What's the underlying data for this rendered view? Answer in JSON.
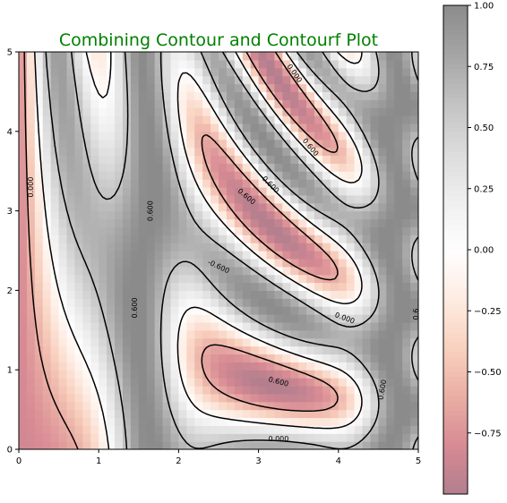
{
  "chart_data": {
    "type": "heatmap",
    "title": "Combining Contour and Contourf Plot",
    "title_color": "#008000",
    "xlim": [
      0,
      5
    ],
    "ylim": [
      0,
      5
    ],
    "x_ticks": [
      "0",
      "1",
      "2",
      "3",
      "4",
      "5"
    ],
    "y_ticks": [
      "0",
      "1",
      "2",
      "3",
      "4",
      "5"
    ],
    "grid": false,
    "grid_resolution": 50,
    "field": "sin(x)^10 + cos(10 + y*x) * cos(x)",
    "colormap": "RdGy",
    "colormap_alpha": 0.5,
    "color_range": [
      -1.0,
      1.0
    ],
    "colorbar": {
      "ticks": [
        "1.00",
        "0.75",
        "0.50",
        "0.25",
        "0.00",
        "−0.25",
        "−0.50",
        "−0.75"
      ],
      "tick_values": [
        1.0,
        0.75,
        0.5,
        0.25,
        0.0,
        -0.25,
        -0.5,
        -0.75
      ],
      "placement": "right"
    },
    "contour_levels": [
      -0.6,
      0.0,
      0.6
    ],
    "contour_color": "#000000",
    "contour_labels": [
      {
        "text": "0.000",
        "x": 0.15,
        "y": 3.3,
        "angle": -90
      },
      {
        "text": "0.600",
        "x": 1.65,
        "y": 3.0,
        "angle": -90
      },
      {
        "text": "0.600",
        "x": 1.45,
        "y": 1.78,
        "angle": -90
      },
      {
        "text": "0.000",
        "x": 3.45,
        "y": 4.73,
        "angle": 55
      },
      {
        "text": "0.600",
        "x": 3.65,
        "y": 3.8,
        "angle": 50
      },
      {
        "text": "0.600",
        "x": 3.15,
        "y": 3.33,
        "angle": 45
      },
      {
        "text": "0.600",
        "x": 2.85,
        "y": 3.18,
        "angle": 40
      },
      {
        "text": "-0.600",
        "x": 2.5,
        "y": 2.3,
        "angle": 25
      },
      {
        "text": "0.000",
        "x": 4.08,
        "y": 1.65,
        "angle": 20
      },
      {
        "text": "0.600",
        "x": 3.25,
        "y": 0.85,
        "angle": 15
      },
      {
        "text": "0.600",
        "x": 4.55,
        "y": 0.75,
        "angle": -80
      },
      {
        "text": "0.000",
        "x": 3.25,
        "y": 0.13,
        "angle": 0
      },
      {
        "text": "0.6",
        "x": 4.97,
        "y": 1.7,
        "angle": -90
      }
    ]
  }
}
